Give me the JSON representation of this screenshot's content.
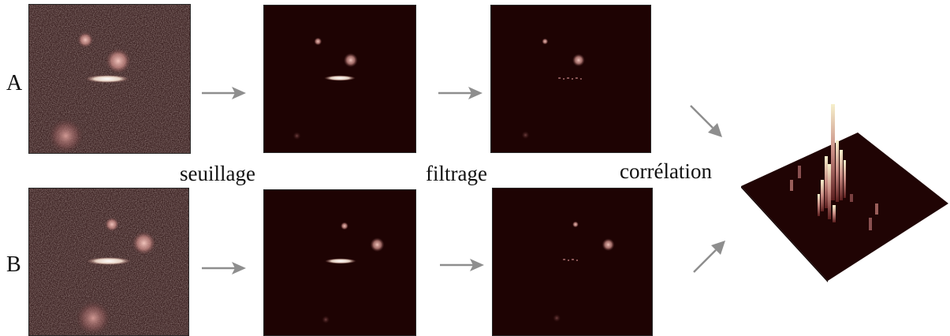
{
  "rows": [
    {
      "id": "A",
      "label": "A"
    },
    {
      "id": "B",
      "label": "B"
    }
  ],
  "steps": [
    {
      "id": "thresholding",
      "label": "seuillage"
    },
    {
      "id": "filtering",
      "label": "filtrage"
    },
    {
      "id": "correlation",
      "label": "corrélation"
    }
  ],
  "colors": {
    "noise_background": "#3e2424",
    "dark_background": "#1e0303",
    "blob": "#d9a29b",
    "ellipse": "#fff6e6",
    "arrow": "#8e8e8e",
    "surface": "#200404",
    "peak": "#f3ecc6"
  }
}
